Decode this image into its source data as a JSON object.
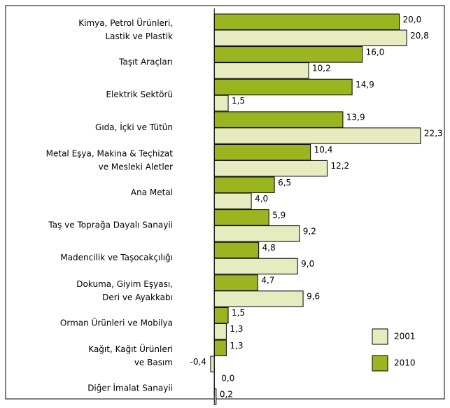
{
  "chart_data": {
    "type": "hbar",
    "categories": [
      "Kimya, Petrol Ürünleri,\nLastik ve Plastik",
      "Taşıt Araçları",
      "Elektrik Sektörü",
      "Gıda, İçki ve Tütün",
      "Metal Eşya, Makina & Teçhizat\nve Mesleki Aletler",
      "Ana Metal",
      "Taş ve Toprağa Dayalı Sanayii",
      "Madencilik ve Taşocakçılığı",
      "Dokuma, Giyim Eşyası,\nDeri ve Ayakkabı",
      "Orman Ürünleri ve Mobilya",
      "Kağıt, Kağıt Ürünleri\nve Basım",
      "Diğer İmalat Sanayii"
    ],
    "series": [
      {
        "name": "2001",
        "color": "#e6ecc0",
        "values": [
          20.8,
          10.2,
          1.5,
          22.3,
          12.2,
          4.0,
          9.2,
          9.0,
          9.6,
          1.3,
          -0.4,
          0.2
        ],
        "value_labels": [
          "20,8",
          "10,2",
          "1,5",
          "22,3",
          "12,2",
          "4,0",
          "9,2",
          "9,0",
          "9,6",
          "1,3",
          "-0,4",
          "0,2"
        ]
      },
      {
        "name": "2010",
        "color": "#9ab51f",
        "values": [
          20.0,
          16.0,
          14.9,
          13.9,
          10.4,
          6.5,
          5.9,
          4.8,
          4.7,
          1.5,
          1.3,
          0.0
        ],
        "value_labels": [
          "20,0",
          "16,0",
          "14,9",
          "13,9",
          "10,4",
          "6,5",
          "5,9",
          "4,8",
          "4,7",
          "1,5",
          "1,3",
          "0,0"
        ]
      }
    ],
    "xlim": [
      -1,
      24.5
    ],
    "legend": "lower right"
  }
}
